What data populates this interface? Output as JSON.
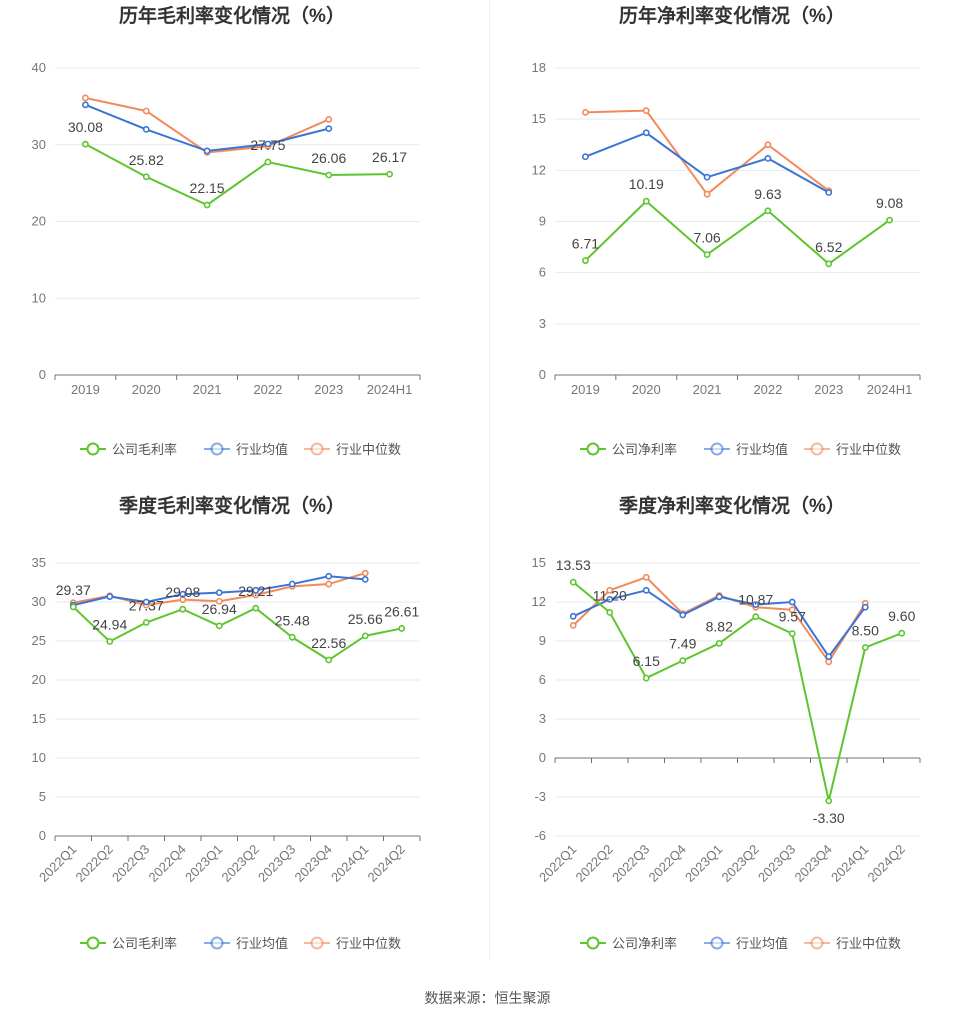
{
  "colors": {
    "company": "#5ec52f",
    "avg": "#3b74d6",
    "median": "#f28a5a"
  },
  "footer": "数据来源：恒生聚源",
  "chart_data": [
    {
      "type": "line",
      "title": "历年毛利率变化情况（%）",
      "categories": [
        "2019",
        "2020",
        "2021",
        "2022",
        "2023",
        "2024H1"
      ],
      "ylim": [
        0,
        40
      ],
      "yticks": [
        0,
        10,
        20,
        30,
        40
      ],
      "grid": true,
      "legend": "bottom",
      "series": [
        {
          "name": "公司毛利率",
          "key": "company",
          "values": [
            30.08,
            25.82,
            22.15,
            27.75,
            26.06,
            26.17
          ],
          "labels": [
            "30.08",
            "25.82",
            "22.15",
            "27.75",
            "26.06",
            "26.17"
          ]
        },
        {
          "name": "行业均值",
          "key": "avg",
          "values": [
            35.2,
            32.0,
            29.2,
            30.1,
            32.1,
            null
          ]
        },
        {
          "name": "行业中位数",
          "key": "median",
          "values": [
            36.1,
            34.4,
            29.0,
            29.8,
            33.3,
            null
          ]
        }
      ]
    },
    {
      "type": "line",
      "title": "历年净利率变化情况（%）",
      "categories": [
        "2019",
        "2020",
        "2021",
        "2022",
        "2023",
        "2024H1"
      ],
      "ylim": [
        0,
        18
      ],
      "yticks": [
        0,
        3,
        6,
        9,
        12,
        15,
        18
      ],
      "grid": true,
      "legend": "bottom",
      "series": [
        {
          "name": "公司净利率",
          "key": "company",
          "values": [
            6.71,
            10.19,
            7.06,
            9.63,
            6.52,
            9.08
          ],
          "labels": [
            "6.71",
            "10.19",
            "7.06",
            "9.63",
            "6.52",
            "9.08"
          ]
        },
        {
          "name": "行业均值",
          "key": "avg",
          "values": [
            12.8,
            14.2,
            11.6,
            12.7,
            10.7,
            null
          ]
        },
        {
          "name": "行业中位数",
          "key": "median",
          "values": [
            15.4,
            15.5,
            10.6,
            13.5,
            10.8,
            null
          ]
        }
      ]
    },
    {
      "type": "line",
      "title": "季度毛利率变化情况（%）",
      "categories": [
        "2022Q1",
        "2022Q2",
        "2022Q3",
        "2022Q4",
        "2023Q1",
        "2023Q2",
        "2023Q3",
        "2023Q4",
        "2024Q1",
        "2024Q2"
      ],
      "ylim": [
        0,
        35
      ],
      "yticks": [
        0,
        5,
        10,
        15,
        20,
        25,
        30,
        35
      ],
      "grid": true,
      "legend": "bottom",
      "series": [
        {
          "name": "公司毛利率",
          "key": "company",
          "values": [
            29.37,
            24.94,
            27.37,
            29.08,
            26.94,
            29.21,
            25.48,
            22.56,
            25.66,
            26.61
          ],
          "labels": [
            "29.37",
            "24.94",
            "27.37",
            "29.08",
            "26.94",
            "29.21",
            "25.48",
            "22.56",
            "25.66",
            "26.61"
          ]
        },
        {
          "name": "行业均值",
          "key": "avg",
          "values": [
            29.6,
            30.7,
            30.0,
            31.0,
            31.2,
            31.5,
            32.3,
            33.3,
            32.9,
            null
          ]
        },
        {
          "name": "行业中位数",
          "key": "median",
          "values": [
            29.9,
            30.8,
            29.6,
            30.3,
            30.1,
            30.9,
            32.0,
            32.3,
            33.7,
            null
          ]
        }
      ]
    },
    {
      "type": "line",
      "title": "季度净利率变化情况（%）",
      "categories": [
        "2022Q1",
        "2022Q2",
        "2022Q3",
        "2022Q4",
        "2023Q1",
        "2023Q2",
        "2023Q3",
        "2023Q4",
        "2024Q1",
        "2024Q2"
      ],
      "ylim": [
        -6,
        15
      ],
      "yticks": [
        -6,
        -3,
        0,
        3,
        6,
        9,
        12,
        15
      ],
      "grid": true,
      "legend": "bottom",
      "series": [
        {
          "name": "公司净利率",
          "key": "company",
          "values": [
            13.53,
            11.2,
            6.15,
            7.49,
            8.82,
            10.87,
            9.57,
            -3.3,
            8.5,
            9.6
          ],
          "labels": [
            "13.53",
            "11.20",
            "6.15",
            "7.49",
            "8.82",
            "10.87",
            "9.57",
            "-3.30",
            "8.50",
            "9.60"
          ]
        },
        {
          "name": "行业均值",
          "key": "avg",
          "values": [
            10.9,
            12.2,
            12.9,
            11.0,
            12.4,
            11.8,
            12.0,
            7.8,
            11.6,
            null
          ]
        },
        {
          "name": "行业中位数",
          "key": "median",
          "values": [
            10.2,
            12.9,
            13.9,
            11.1,
            12.5,
            11.6,
            11.4,
            7.4,
            11.9,
            null
          ]
        }
      ]
    }
  ]
}
